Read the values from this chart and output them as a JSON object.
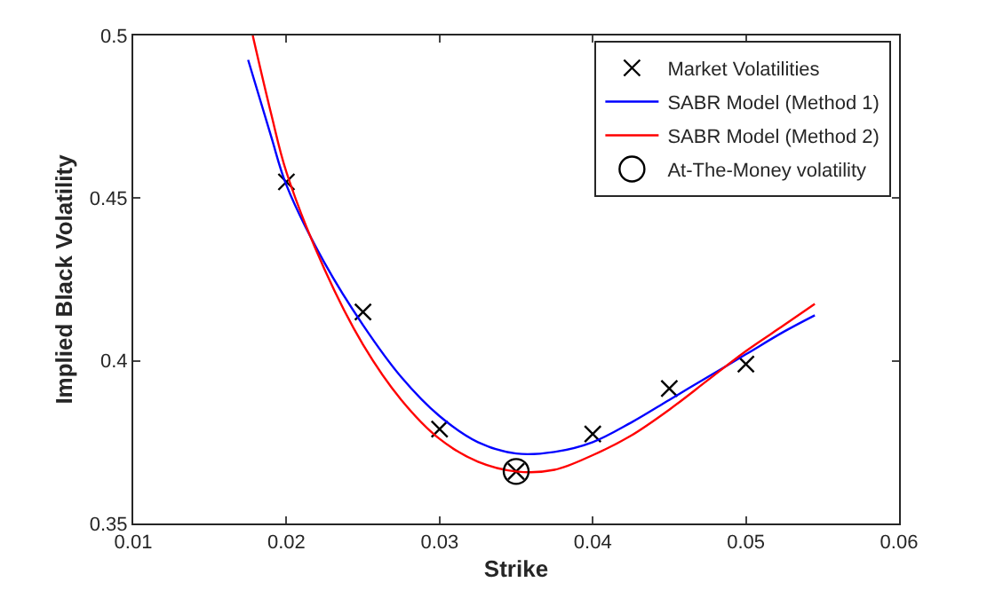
{
  "chart_data": {
    "type": "line",
    "xlabel": "Strike",
    "ylabel": "Implied Black Volatility",
    "xlim": [
      0.01,
      0.06
    ],
    "xticks": [
      0.01,
      0.02,
      0.03,
      0.04,
      0.05,
      0.06
    ],
    "ylim": [
      0.35,
      0.5
    ],
    "yticks": [
      0.35,
      0.4,
      0.45,
      0.5
    ],
    "grid": false,
    "legend": "top right",
    "series": [
      {
        "name": "Market Volatilities",
        "type": "scatter",
        "marker": "cross",
        "color": "#000000",
        "x": [
          0.02,
          0.025,
          0.03,
          0.035,
          0.04,
          0.045,
          0.05
        ],
        "values": [
          0.455,
          0.415,
          0.379,
          0.366,
          0.3775,
          0.3915,
          0.399
        ]
      },
      {
        "name": "SABR Model (Method 1)",
        "color": "#0000ff",
        "x": [
          0.0175,
          0.019,
          0.02,
          0.0225,
          0.025,
          0.0275,
          0.03,
          0.0325,
          0.035,
          0.0375,
          0.04,
          0.0425,
          0.045,
          0.0475,
          0.05,
          0.0525,
          0.0545
        ],
        "values": [
          0.4925,
          0.469,
          0.454,
          0.43,
          0.411,
          0.395,
          0.383,
          0.375,
          0.3715,
          0.372,
          0.375,
          0.381,
          0.388,
          0.395,
          0.402,
          0.409,
          0.414
        ]
      },
      {
        "name": "SABR Model (Method 2)",
        "color": "#ff0000",
        "x": [
          0.0178,
          0.019,
          0.02,
          0.0225,
          0.025,
          0.0275,
          0.03,
          0.0325,
          0.035,
          0.0375,
          0.04,
          0.0425,
          0.045,
          0.0475,
          0.05,
          0.0525,
          0.0545
        ],
        "values": [
          0.5,
          0.476,
          0.458,
          0.428,
          0.405,
          0.388,
          0.376,
          0.369,
          0.366,
          0.3665,
          0.371,
          0.377,
          0.385,
          0.394,
          0.403,
          0.411,
          0.4175
        ]
      },
      {
        "name": "At-The-Money volatility",
        "type": "scatter",
        "marker": "circle",
        "color": "#000000",
        "x": [
          0.035
        ],
        "values": [
          0.366
        ]
      }
    ]
  }
}
